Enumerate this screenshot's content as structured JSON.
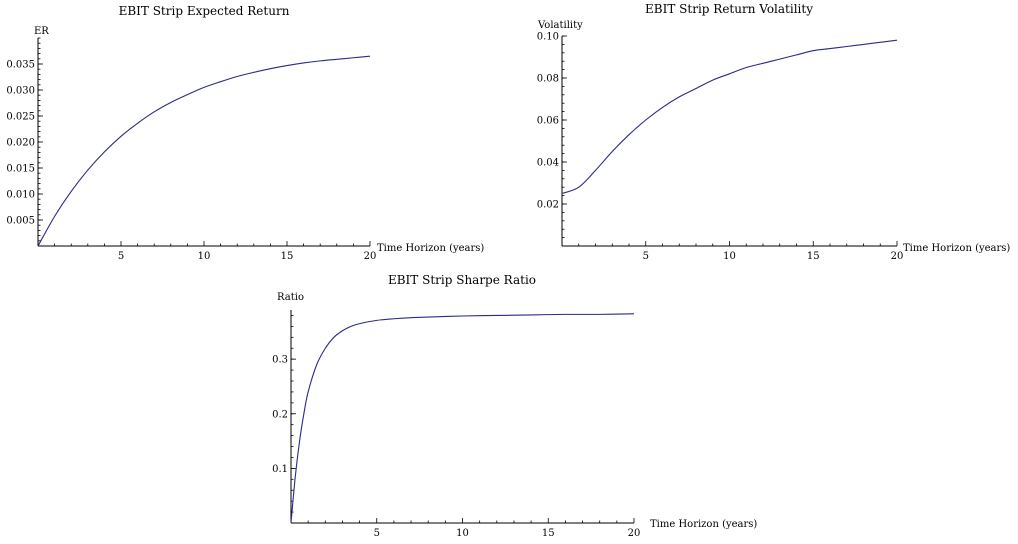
{
  "chart_data": [
    {
      "type": "line",
      "title": "EBIT Strip Expected Return",
      "ylabel": "ER",
      "xlabel": "Time Horizon (years)",
      "xlim": [
        0,
        20
      ],
      "ylim": [
        0,
        0.04
      ],
      "x_ticks": [
        "5",
        "10",
        "15",
        "20"
      ],
      "y_ticks": [
        "0.005",
        "0.010",
        "0.015",
        "0.020",
        "0.025",
        "0.030",
        "0.035"
      ],
      "grid": false,
      "series": [
        {
          "x": [
            0,
            1,
            2,
            3,
            4,
            5,
            6,
            7,
            8,
            9,
            10,
            11,
            12,
            13,
            14,
            15,
            16,
            17,
            18,
            19,
            20
          ],
          "y": [
            0,
            0.0057,
            0.0105,
            0.0146,
            0.0181,
            0.0211,
            0.0236,
            0.0258,
            0.0276,
            0.0291,
            0.0305,
            0.0316,
            0.0326,
            0.0334,
            0.0341,
            0.0347,
            0.0352,
            0.0356,
            0.0359,
            0.0362,
            0.0365
          ]
        }
      ]
    },
    {
      "type": "line",
      "title": "EBIT Strip Return Volatility",
      "ylabel": "Volatility",
      "xlabel": "Time Horizon (years)",
      "xlim": [
        0,
        20
      ],
      "ylim": [
        0,
        0.1
      ],
      "x_ticks": [
        "5",
        "10",
        "15",
        "20"
      ],
      "y_ticks": [
        "0.02",
        "0.04",
        "0.06",
        "0.08",
        "0.10"
      ],
      "grid": false,
      "series": [
        {
          "x": [
            0,
            1,
            2,
            3,
            4,
            5,
            6,
            7,
            8,
            9,
            10,
            11,
            12,
            13,
            14,
            15,
            16,
            17,
            18,
            19,
            20
          ],
          "y": [
            0.025,
            0.028,
            0.036,
            0.045,
            0.053,
            0.06,
            0.066,
            0.071,
            0.075,
            0.079,
            0.082,
            0.085,
            0.087,
            0.089,
            0.091,
            0.093,
            0.094,
            0.095,
            0.096,
            0.097,
            0.098
          ]
        }
      ]
    },
    {
      "type": "line",
      "title": "EBIT Strip Sharpe Ratio",
      "ylabel": "Ratio",
      "xlabel": "Time Horizon (years)",
      "xlim": [
        0,
        20
      ],
      "ylim": [
        0,
        0.39
      ],
      "x_ticks": [
        "5",
        "10",
        "15",
        "20"
      ],
      "y_ticks": [
        "0.1",
        "0.2",
        "0.3"
      ],
      "grid": false,
      "series": [
        {
          "x": [
            0,
            0.25,
            0.5,
            0.75,
            1,
            1.5,
            2,
            2.5,
            3,
            3.5,
            4,
            5,
            6,
            7,
            8,
            10,
            12,
            14,
            16,
            18,
            20
          ],
          "y": [
            0,
            0.085,
            0.15,
            0.2,
            0.24,
            0.29,
            0.32,
            0.34,
            0.352,
            0.36,
            0.365,
            0.371,
            0.374,
            0.376,
            0.377,
            0.379,
            0.38,
            0.381,
            0.382,
            0.382,
            0.383
          ]
        }
      ]
    }
  ]
}
